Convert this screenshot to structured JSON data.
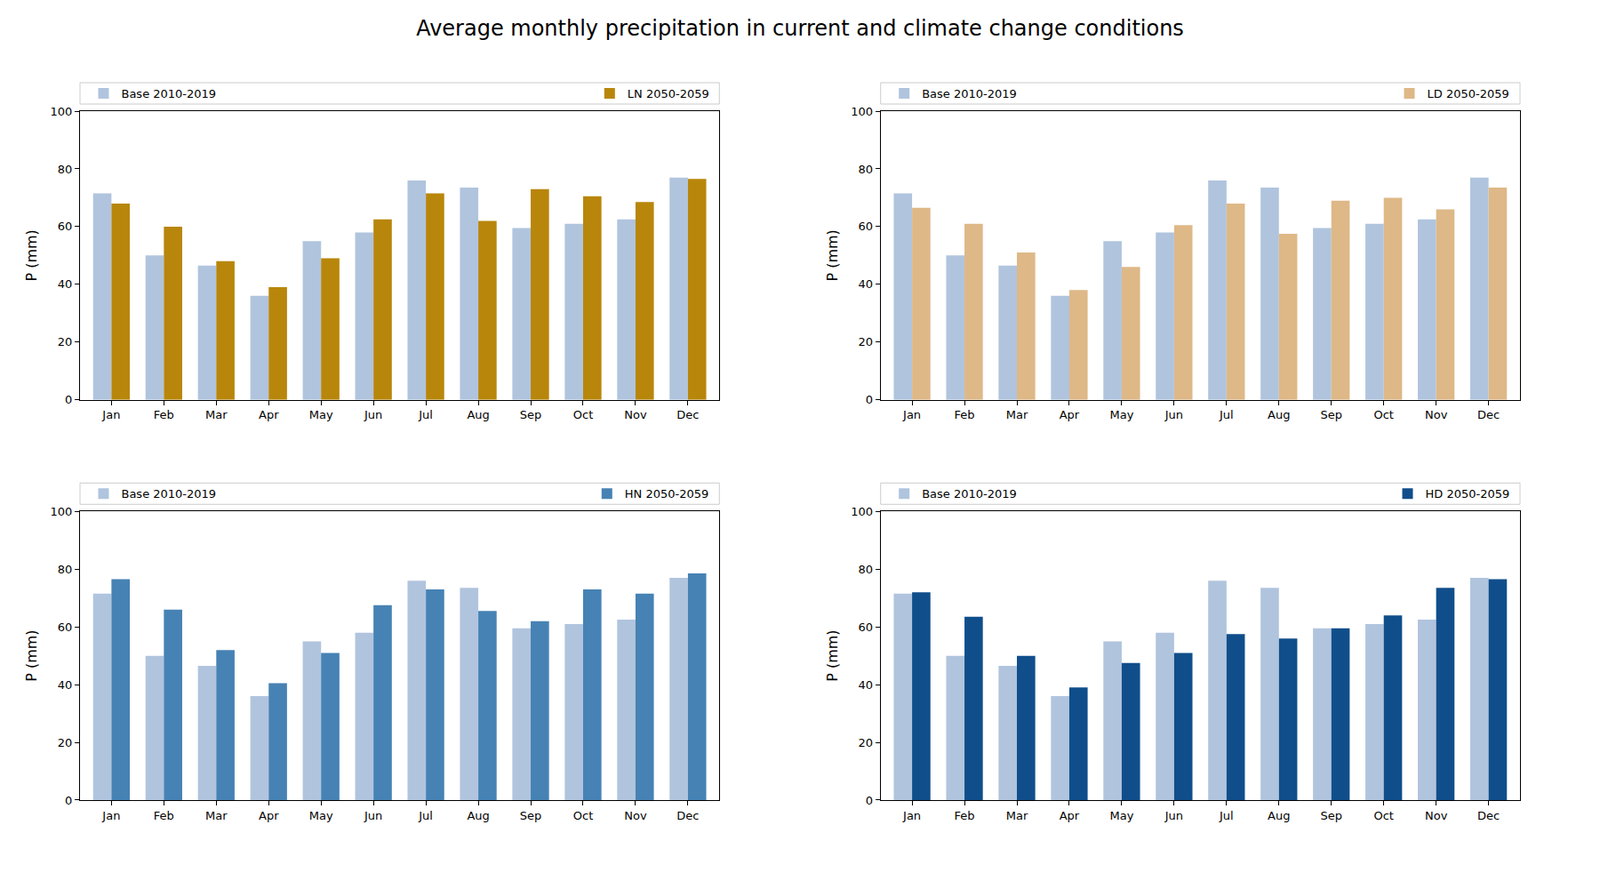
{
  "title": "Average monthly precipitation in current and climate change conditions",
  "chart_data": [
    {
      "type": "bar",
      "categories": [
        "Jan",
        "Feb",
        "Mar",
        "Apr",
        "May",
        "Jun",
        "Jul",
        "Aug",
        "Sep",
        "Oct",
        "Nov",
        "Dec"
      ],
      "series": [
        {
          "name": "Base 2010-2019",
          "color": "#b0c4de",
          "values": [
            71.5,
            50,
            46.5,
            36,
            55,
            58,
            76,
            73.5,
            59.5,
            61,
            62.5,
            77
          ]
        },
        {
          "name": "LN 2050-2059",
          "color": "#b8860b",
          "values": [
            68,
            60,
            48,
            39,
            49,
            62.5,
            71.5,
            62,
            73,
            70.5,
            68.5,
            76.5
          ]
        }
      ],
      "ylabel": "P (mm)",
      "ylim": [
        0,
        100
      ],
      "yticks": [
        0,
        20,
        40,
        60,
        80,
        100
      ],
      "grid": false,
      "legend": "top"
    },
    {
      "type": "bar",
      "categories": [
        "Jan",
        "Feb",
        "Mar",
        "Apr",
        "May",
        "Jun",
        "Jul",
        "Aug",
        "Sep",
        "Oct",
        "Nov",
        "Dec"
      ],
      "series": [
        {
          "name": "Base 2010-2019",
          "color": "#b0c4de",
          "values": [
            71.5,
            50,
            46.5,
            36,
            55,
            58,
            76,
            73.5,
            59.5,
            61,
            62.5,
            77
          ]
        },
        {
          "name": "LD 2050-2059",
          "color": "#deb887",
          "values": [
            66.5,
            61,
            51,
            38,
            46,
            60.5,
            68,
            57.5,
            69,
            70,
            66,
            73.5
          ]
        }
      ],
      "ylabel": "P (mm)",
      "ylim": [
        0,
        100
      ],
      "yticks": [
        0,
        20,
        40,
        60,
        80,
        100
      ],
      "grid": false,
      "legend": "top"
    },
    {
      "type": "bar",
      "categories": [
        "Jan",
        "Feb",
        "Mar",
        "Apr",
        "May",
        "Jun",
        "Jul",
        "Aug",
        "Sep",
        "Oct",
        "Nov",
        "Dec"
      ],
      "series": [
        {
          "name": "Base 2010-2019",
          "color": "#b0c4de",
          "values": [
            71.5,
            50,
            46.5,
            36,
            55,
            58,
            76,
            73.5,
            59.5,
            61,
            62.5,
            77
          ]
        },
        {
          "name": "HN 2050-2059",
          "color": "#4682b4",
          "values": [
            76.5,
            66,
            52,
            40.5,
            51,
            67.5,
            73,
            65.5,
            62,
            73,
            71.5,
            78.5
          ]
        }
      ],
      "ylabel": "P (mm)",
      "ylim": [
        0,
        100
      ],
      "yticks": [
        0,
        20,
        40,
        60,
        80,
        100
      ],
      "grid": false,
      "legend": "top"
    },
    {
      "type": "bar",
      "categories": [
        "Jan",
        "Feb",
        "Mar",
        "Apr",
        "May",
        "Jun",
        "Jul",
        "Aug",
        "Sep",
        "Oct",
        "Nov",
        "Dec"
      ],
      "series": [
        {
          "name": "Base 2010-2019",
          "color": "#b0c4de",
          "values": [
            71.5,
            50,
            46.5,
            36,
            55,
            58,
            76,
            73.5,
            59.5,
            61,
            62.5,
            77
          ]
        },
        {
          "name": "HD 2050-2059",
          "color": "#104e8b",
          "values": [
            72,
            63.5,
            50,
            39,
            47.5,
            51,
            57.5,
            56,
            59.5,
            64,
            73.5,
            76.5
          ]
        }
      ],
      "ylabel": "P (mm)",
      "ylim": [
        0,
        100
      ],
      "yticks": [
        0,
        20,
        40,
        60,
        80,
        100
      ],
      "grid": false,
      "legend": "top"
    }
  ]
}
